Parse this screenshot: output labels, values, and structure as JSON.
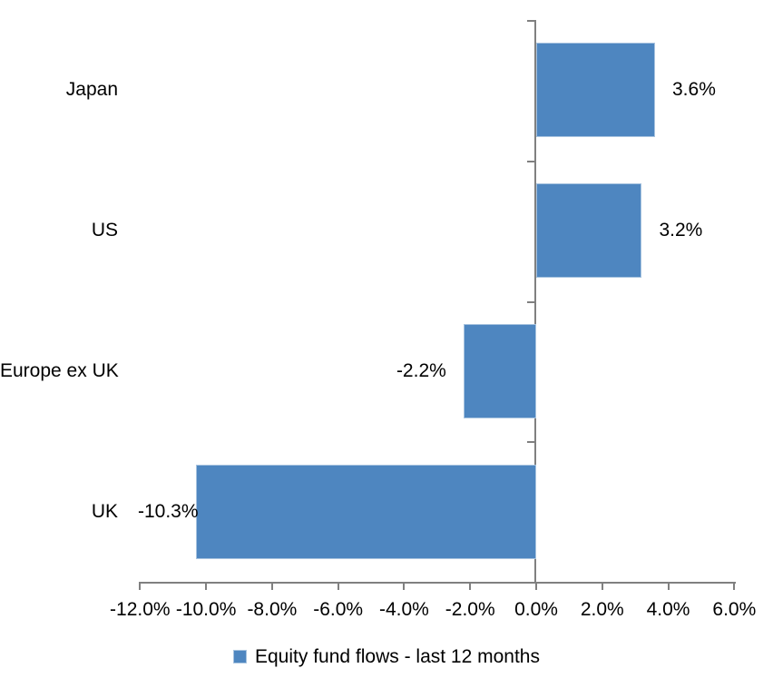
{
  "chart_data": {
    "type": "bar",
    "orientation": "horizontal",
    "title": "",
    "categories": [
      "Japan",
      "US",
      "Europe ex UK",
      "UK"
    ],
    "series": [
      {
        "name": "Equity fund flows - last 12 months",
        "values": [
          3.6,
          3.2,
          -2.2,
          -10.3
        ],
        "value_labels": [
          "3.6%",
          "3.2%",
          "-2.2%",
          "-10.3%"
        ],
        "color": "#4e86c0"
      }
    ],
    "x_axis": {
      "min": -12,
      "max": 6,
      "step": 2,
      "tick_labels": [
        "-12.0%",
        "-10.0%",
        "-8.0%",
        "-6.0%",
        "-4.0%",
        "-2.0%",
        "0.0%",
        "2.0%",
        "4.0%",
        "6.0%"
      ]
    },
    "grid": false,
    "legend": {
      "position": "bottom-center",
      "entries": [
        {
          "label": "Equity fund flows - last 12 months",
          "swatch_color": "#4e86c0"
        }
      ]
    },
    "colors": {
      "bar_fill": "#4e86c0",
      "bar_border": "#a7c3df",
      "axis_line": "#808080",
      "label_text": "#000000",
      "background": "#ffffff"
    }
  }
}
